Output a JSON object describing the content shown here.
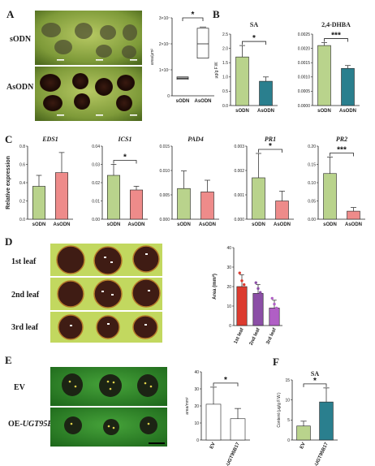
{
  "panel_labels": {
    "a": "A",
    "b": "B",
    "c": "C",
    "d": "D",
    "e": "E",
    "f": "F"
  },
  "panel_a": {
    "rows": [
      "sODN",
      "AsODN"
    ],
    "chart_data": {
      "type": "box",
      "title": "",
      "ylabel": "area/μm²",
      "categories": [
        "sODN",
        "AsODN"
      ],
      "series": [
        {
          "values": [
            0.68,
            2.0
          ]
        }
      ],
      "ylim": [
        0,
        3
      ],
      "yticks": [
        "0",
        "1×10⁷",
        "2×10⁷",
        "3×10⁷"
      ],
      "significance": "*",
      "colors": {
        "sODN": "#222222",
        "AsODN": "#ffffff"
      }
    }
  },
  "panel_b": {
    "charts": [
      {
        "type": "bar",
        "title": "SA",
        "ylabel": "μg/g F.W.",
        "categories": [
          "sODN",
          "AsODN"
        ],
        "series": [
          {
            "values": [
              1.7,
              0.85
            ]
          }
        ],
        "errors": [
          0.4,
          0.15
        ],
        "ylim": [
          0,
          2.5
        ],
        "yticks": [
          "0.0",
          "0.5",
          "1.0",
          "1.5",
          "2.0",
          "2.5"
        ],
        "significance": "*",
        "colors": [
          "#b9d38c",
          "#2a7f8e"
        ]
      },
      {
        "type": "bar",
        "title": "2,4-DHBA",
        "ylabel": "",
        "categories": [
          "sODN",
          "AsODN"
        ],
        "series": [
          {
            "values": [
              0.0021,
              0.0013
            ]
          }
        ],
        "errors": [
          0.0001,
          0.0001
        ],
        "ylim": [
          0,
          0.0025
        ],
        "yticks": [
          "0.0000",
          "0.0005",
          "0.0010",
          "0.0015",
          "0.0020",
          "0.0025"
        ],
        "significance": "***",
        "colors": [
          "#b9d38c",
          "#2a7f8e"
        ]
      }
    ]
  },
  "panel_c": {
    "ylabel": "Relative expression",
    "charts": [
      {
        "type": "bar",
        "title": "EDS1",
        "categories": [
          "sODN",
          "AsODN"
        ],
        "series": [
          {
            "values": [
              0.36,
              0.51
            ]
          }
        ],
        "errors": [
          0.12,
          0.22
        ],
        "ylim": [
          0,
          0.8
        ],
        "yticks": [
          "0.0",
          "0.2",
          "0.4",
          "0.6",
          "0.8"
        ],
        "significance": "",
        "colors": [
          "#b9d38c",
          "#ee8b8a"
        ]
      },
      {
        "type": "bar",
        "title": "ICS1",
        "categories": [
          "sODN",
          "AsODN"
        ],
        "series": [
          {
            "values": [
              0.024,
              0.016
            ]
          }
        ],
        "errors": [
          0.006,
          0.002
        ],
        "ylim": [
          0,
          0.04
        ],
        "yticks": [
          "0.00",
          "0.01",
          "0.02",
          "0.03",
          "0.04"
        ],
        "significance": "*",
        "colors": [
          "#b9d38c",
          "#ee8b8a"
        ]
      },
      {
        "type": "bar",
        "title": "PAD4",
        "categories": [
          "sODN",
          "AsODN"
        ],
        "series": [
          {
            "values": [
              0.0063,
              0.0056
            ]
          }
        ],
        "errors": [
          0.0036,
          0.0024
        ],
        "ylim": [
          0,
          0.015
        ],
        "yticks": [
          "0.000",
          "0.005",
          "0.010",
          "0.015"
        ],
        "significance": "",
        "colors": [
          "#b9d38c",
          "#ee8b8a"
        ]
      },
      {
        "type": "bar",
        "title": "PR1",
        "categories": [
          "sODN",
          "AsODN"
        ],
        "series": [
          {
            "values": [
              0.0017,
              0.00075
            ]
          }
        ],
        "errors": [
          0.001,
          0.0004
        ],
        "ylim": [
          0,
          0.003
        ],
        "yticks": [
          "0.000",
          "0.001",
          "0.002",
          "0.003"
        ],
        "significance": "*",
        "colors": [
          "#b9d38c",
          "#ee8b8a"
        ]
      },
      {
        "type": "bar",
        "title": "PR2",
        "categories": [
          "sODN",
          "AsODN"
        ],
        "series": [
          {
            "values": [
              0.125,
              0.022
            ]
          }
        ],
        "errors": [
          0.045,
          0.01
        ],
        "ylim": [
          0,
          0.2
        ],
        "yticks": [
          "0.00",
          "0.05",
          "0.10",
          "0.15",
          "0.20"
        ],
        "significance": "***",
        "colors": [
          "#b9d38c",
          "#ee8b8a"
        ]
      }
    ]
  },
  "panel_d": {
    "rows": [
      "1st leaf",
      "2nd leaf",
      "3rd leaf"
    ],
    "chart_data": {
      "type": "bar",
      "title": "",
      "ylabel": "Area (mm²)",
      "categories": [
        "1st leaf",
        "2nd leaf",
        "3rd leaf"
      ],
      "series": [
        {
          "values": [
            20,
            16.5,
            9
          ]
        }
      ],
      "errors": [
        6,
        4.5,
        4
      ],
      "points": [
        [
          27,
          23,
          21,
          19,
          17,
          16,
          14
        ],
        [
          22,
          19,
          17,
          15,
          13,
          12
        ],
        [
          14,
          11,
          9,
          7,
          5
        ]
      ],
      "ylim": [
        0,
        40
      ],
      "yticks": [
        "0",
        "10",
        "20",
        "30",
        "40"
      ],
      "colors": [
        "#dc3b2f",
        "#8b4fa6",
        "#b05fc5"
      ]
    }
  },
  "panel_e": {
    "rows": [
      "EV",
      "OE-UGT95B17"
    ],
    "row_label_prefix": "OE-",
    "row_label_italic": "UGT95B17",
    "chart_data": {
      "type": "bar",
      "title": "",
      "ylabel": "area/mm²",
      "categories": [
        "EV",
        "OE-UGT95B17"
      ],
      "series": [
        {
          "values": [
            21,
            12.5
          ]
        }
      ],
      "errors": [
        10,
        6
      ],
      "ylim": [
        0,
        40
      ],
      "yticks": [
        "0",
        "10",
        "20",
        "30",
        "40"
      ],
      "significance": "*",
      "colors": [
        "#ffffff",
        "#ffffff"
      ]
    }
  },
  "panel_f": {
    "chart_data": {
      "type": "bar",
      "title": "SA",
      "ylabel": "Content (μg/g F.W.)",
      "categories": [
        "EV",
        "OE-UGT95B17"
      ],
      "series": [
        {
          "values": [
            3.5,
            9.5
          ]
        }
      ],
      "errors": [
        1.2,
        3.5
      ],
      "ylim": [
        0,
        15
      ],
      "yticks": [
        "0",
        "5",
        "10",
        "15"
      ],
      "significance": "*",
      "colors": [
        "#b9d38c",
        "#2a7f8e"
      ]
    }
  }
}
